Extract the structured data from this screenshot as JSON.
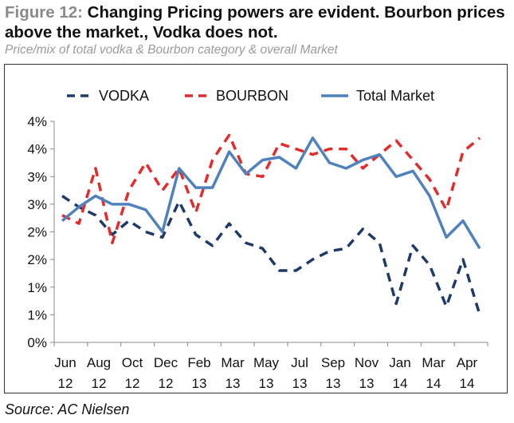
{
  "header": {
    "title_lead": "Figure 12: ",
    "title_rest": "Changing Pricing powers are evident. Bourbon prices above the market., Vodka does not.",
    "subtitle": "Price/mix of total vodka & Bourbon category & overall Market"
  },
  "source": "Source: AC Nielsen",
  "colors": {
    "vodka": "#1F3A68",
    "bourbon": "#E32B2B",
    "total": "#4F81BD",
    "axis": "#888888"
  },
  "chart_data": {
    "type": "line",
    "legend_position": "top",
    "grid": false,
    "y_tick_labels": [
      "0%",
      "1%",
      "1%",
      "2%",
      "2%",
      "3%",
      "3%",
      "4%",
      "4%"
    ],
    "y_ticks": [
      0,
      0.5,
      1.0,
      1.5,
      2.0,
      2.5,
      3.0,
      3.5,
      4.0
    ],
    "ylim": [
      0,
      4.0
    ],
    "x_tick_labels": [
      [
        "Jun",
        "12"
      ],
      [
        "Aug",
        "12"
      ],
      [
        "Oct",
        "12"
      ],
      [
        "Dec",
        "12"
      ],
      [
        "Feb",
        "13"
      ],
      [
        "Mar",
        "13"
      ],
      [
        "May",
        "13"
      ],
      [
        "Jul",
        "13"
      ],
      [
        "Sep",
        "13"
      ],
      [
        "Nov",
        "13"
      ],
      [
        "Jan",
        "14"
      ],
      [
        "Mar",
        "14"
      ],
      [
        "Apr",
        "14"
      ]
    ],
    "series": [
      {
        "name": "VODKA",
        "style": "dashed",
        "values": [
          2.65,
          2.45,
          2.3,
          1.95,
          2.2,
          2.0,
          1.9,
          2.55,
          1.95,
          1.75,
          2.15,
          1.8,
          1.7,
          1.3,
          1.3,
          1.5,
          1.65,
          1.7,
          2.05,
          1.8,
          0.7,
          1.75,
          1.4,
          0.65,
          1.5,
          0.5
        ]
      },
      {
        "name": "BOURBON",
        "style": "dashed",
        "values": [
          2.3,
          2.15,
          3.15,
          1.8,
          2.75,
          3.25,
          2.75,
          3.15,
          2.35,
          3.3,
          3.75,
          3.05,
          3.0,
          3.6,
          3.5,
          3.4,
          3.5,
          3.5,
          3.15,
          3.4,
          3.65,
          3.3,
          2.95,
          2.4,
          3.45,
          3.7
        ]
      },
      {
        "name": "Total Market",
        "style": "solid",
        "values": [
          2.2,
          2.45,
          2.65,
          2.5,
          2.5,
          2.4,
          2.0,
          3.15,
          2.8,
          2.8,
          3.45,
          3.05,
          3.3,
          3.35,
          3.15,
          3.7,
          3.25,
          3.15,
          3.3,
          3.4,
          3.0,
          3.1,
          2.65,
          1.9,
          2.2,
          1.7
        ]
      }
    ]
  }
}
